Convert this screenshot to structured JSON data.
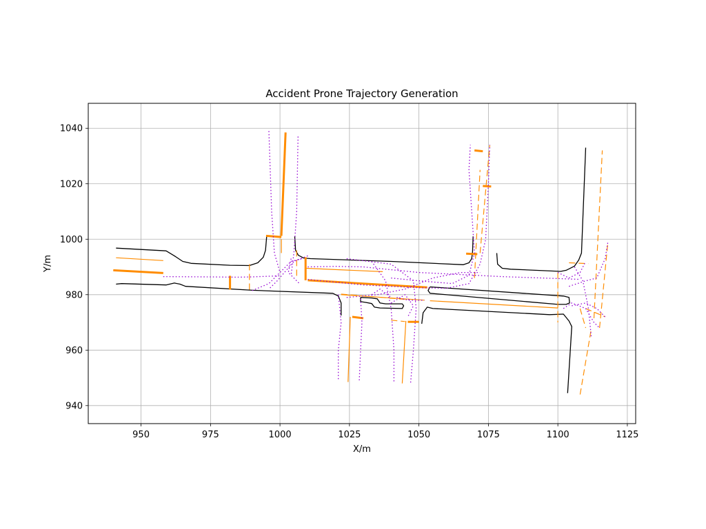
{
  "chart_data": {
    "type": "line",
    "title": "Accident Prone Trajectory Generation",
    "xlabel": "X/m",
    "ylabel": "Y/m",
    "xlim": [
      931,
      1128
    ],
    "ylim": [
      933.5,
      1049
    ],
    "xticks": [
      950,
      975,
      1000,
      1025,
      1050,
      1075,
      1100,
      1125
    ],
    "yticks": [
      940,
      960,
      980,
      1000,
      1020,
      1040
    ],
    "grid": true,
    "colors": {
      "road": "#000000",
      "lane": "#ff8c00",
      "trajectory": "#9400d3",
      "grid": "#b0b0b0"
    },
    "series": [
      {
        "style": "road",
        "points": [
          [
            941,
            996.8
          ],
          [
            959,
            995.8
          ],
          [
            962,
            994
          ],
          [
            965,
            992
          ],
          [
            968,
            991.3
          ],
          [
            982,
            990.6
          ],
          [
            989,
            990.5
          ],
          [
            992,
            991.5
          ],
          [
            994,
            993.5
          ],
          [
            994.8,
            996
          ],
          [
            995.2,
            1001
          ]
        ]
      },
      {
        "style": "road",
        "points": [
          [
            941,
            983.8
          ],
          [
            943,
            984
          ],
          [
            959,
            983.5
          ],
          [
            962,
            984.2
          ],
          [
            964,
            983.8
          ],
          [
            966,
            983
          ],
          [
            990,
            981.6
          ],
          [
            1019,
            980.5
          ],
          [
            1021,
            979.5
          ],
          [
            1022,
            977
          ],
          [
            1022,
            972.5
          ]
        ]
      },
      {
        "style": "road",
        "points": [
          [
            1005.3,
            1001
          ],
          [
            1005.6,
            996
          ],
          [
            1006.6,
            994.2
          ],
          [
            1008.5,
            993.2
          ],
          [
            1011,
            993
          ],
          [
            1040,
            992
          ],
          [
            1066,
            990.8
          ],
          [
            1068,
            991.5
          ],
          [
            1069,
            993
          ],
          [
            1069.3,
            995.5
          ],
          [
            1069.5,
            1001
          ]
        ]
      },
      {
        "style": "road",
        "points": [
          [
            1078,
            995
          ],
          [
            1078.3,
            991
          ],
          [
            1080,
            989.5
          ],
          [
            1083,
            989.2
          ],
          [
            1099,
            988.5
          ],
          [
            1101,
            988.4
          ],
          [
            1103,
            988.8
          ],
          [
            1106,
            990.3
          ],
          [
            1107.5,
            992.5
          ],
          [
            1108.5,
            995
          ],
          [
            1110,
            1033
          ]
        ]
      },
      {
        "style": "road",
        "points": [
          [
            1103.5,
            944.5
          ],
          [
            1105,
            968.5
          ],
          [
            1104,
            970.5
          ],
          [
            1102,
            973
          ],
          [
            1097,
            972.8
          ],
          [
            1055,
            975
          ],
          [
            1053,
            975.5
          ],
          [
            1051.5,
            973.5
          ],
          [
            1051,
            969.5
          ]
        ]
      },
      {
        "style": "road",
        "points": [
          [
            1054,
            982.8
          ],
          [
            1102,
            979.5
          ],
          [
            1104,
            979
          ],
          [
            1104.2,
            977
          ],
          [
            1103,
            976.5
          ],
          [
            1100,
            976.5
          ],
          [
            1054,
            980.5
          ],
          [
            1053.3,
            981.5
          ],
          [
            1054,
            982.8
          ]
        ]
      },
      {
        "style": "road",
        "points": [
          [
            1029,
            979
          ],
          [
            1029,
            977.5
          ],
          [
            1031,
            977.2
          ],
          [
            1033,
            976.8
          ],
          [
            1034,
            975.5
          ],
          [
            1036,
            975.2
          ],
          [
            1044,
            975
          ],
          [
            1044.5,
            976
          ],
          [
            1044,
            976.7
          ],
          [
            1038,
            976.7
          ],
          [
            1036,
            977
          ],
          [
            1035,
            978.5
          ],
          [
            1033,
            978.8
          ],
          [
            1029,
            979
          ]
        ]
      },
      {
        "style": "lane-thick",
        "points": [
          [
            940,
            988.8
          ],
          [
            958,
            987.8
          ]
        ]
      },
      {
        "style": "lane-thick",
        "points": [
          [
            982,
            986.8
          ],
          [
            982,
            981.8
          ]
        ]
      },
      {
        "style": "lane-thick",
        "points": [
          [
            995,
            1001.2
          ],
          [
            1000.5,
            1000.8
          ]
        ]
      },
      {
        "style": "lane-thick",
        "points": [
          [
            1000.5,
            1001.2
          ],
          [
            1002,
            1038.5
          ]
        ]
      },
      {
        "style": "lane-thick",
        "points": [
          [
            1009.2,
            993.5
          ],
          [
            1009.2,
            985.2
          ]
        ]
      },
      {
        "style": "lane-thick",
        "points": [
          [
            1010,
            985.2
          ],
          [
            1053,
            982.6
          ]
        ]
      },
      {
        "style": "lane-thick",
        "points": [
          [
            1026,
            972
          ],
          [
            1030,
            971.5
          ]
        ]
      },
      {
        "style": "lane-thick",
        "points": [
          [
            1046,
            970.2
          ],
          [
            1050,
            970.2
          ]
        ]
      },
      {
        "style": "lane-thick",
        "points": [
          [
            1067,
            994.8
          ],
          [
            1071,
            994.6
          ]
        ]
      },
      {
        "style": "lane-thick",
        "points": [
          [
            1070,
            1032
          ],
          [
            1073,
            1031.7
          ]
        ]
      },
      {
        "style": "lane-thick",
        "points": [
          [
            1073,
            1019.2
          ],
          [
            1076,
            1019
          ]
        ]
      },
      {
        "style": "lane",
        "points": [
          [
            941,
            993.3
          ],
          [
            958,
            992.3
          ]
        ]
      },
      {
        "style": "lane",
        "points": [
          [
            1009.5,
            989.5
          ],
          [
            1037,
            988.3
          ]
        ]
      },
      {
        "style": "lane",
        "points": [
          [
            1054,
            977.8
          ],
          [
            1100,
            975.2
          ]
        ]
      },
      {
        "style": "lane",
        "points": [
          [
            1022,
            980
          ],
          [
            1052,
            978
          ]
        ]
      },
      {
        "style": "lane",
        "points": [
          [
            1025.3,
            972
          ],
          [
            1024.5,
            948.5
          ]
        ]
      },
      {
        "style": "lane",
        "points": [
          [
            1045.3,
            970.5
          ],
          [
            1044,
            948
          ]
        ]
      },
      {
        "style": "lane",
        "points": [
          [
            1000.5,
            1000
          ],
          [
            1000.5,
            995
          ]
        ]
      },
      {
        "style": "lane-dash",
        "points": [
          [
            1104,
            991.5
          ],
          [
            1111,
            991.2
          ]
        ]
      },
      {
        "style": "lane-dash",
        "points": [
          [
            1108,
            944
          ],
          [
            1112,
            967.5
          ]
        ]
      },
      {
        "style": "lane-dash",
        "points": [
          [
            1113,
            971.5
          ],
          [
            1116,
            1032
          ]
        ]
      },
      {
        "style": "lane-dash",
        "points": [
          [
            1115,
            968
          ],
          [
            1118,
            999
          ]
        ]
      },
      {
        "style": "lane-dash",
        "points": [
          [
            1100,
            988
          ],
          [
            1100,
            970
          ]
        ]
      },
      {
        "style": "lane-dash",
        "points": [
          [
            1072,
            995
          ],
          [
            1075.5,
            1034
          ]
        ]
      },
      {
        "style": "lane-dash",
        "points": [
          [
            1070,
            986
          ],
          [
            1072,
            1025
          ]
        ]
      },
      {
        "style": "lane-dash",
        "points": [
          [
            989,
            991
          ],
          [
            989,
            981
          ]
        ]
      },
      {
        "style": "lane-dash",
        "points": [
          [
            1006,
            996
          ],
          [
            1006,
            986
          ]
        ]
      },
      {
        "style": "lane-dash",
        "points": [
          [
            1040,
            970.8
          ],
          [
            1045,
            970.3
          ]
        ]
      },
      {
        "style": "lane-dash",
        "points": [
          [
            1022,
            980.2
          ],
          [
            1045,
            978.3
          ]
        ]
      },
      {
        "style": "lane-dash",
        "points": [
          [
            1108,
            975
          ],
          [
            1110,
            968
          ]
        ]
      },
      {
        "style": "lane-dash",
        "points": [
          [
            1110,
            975
          ],
          [
            1117,
            972
          ]
        ]
      },
      {
        "style": "traj",
        "points": [
          [
            996,
            1039
          ],
          [
            997,
            1010
          ],
          [
            998,
            995
          ],
          [
            1000,
            988
          ]
        ]
      },
      {
        "style": "traj",
        "points": [
          [
            1006.5,
            1037
          ],
          [
            1006,
            1010
          ],
          [
            1005,
            995
          ],
          [
            1004,
            987
          ]
        ]
      },
      {
        "style": "traj",
        "points": [
          [
            958,
            986.5
          ],
          [
            975,
            986.4
          ],
          [
            985,
            986.3
          ],
          [
            990,
            986.4
          ],
          [
            1000,
            986.8
          ]
        ]
      },
      {
        "style": "traj",
        "points": [
          [
            990,
            981.5
          ],
          [
            996,
            984
          ],
          [
            1000,
            988
          ],
          [
            1004,
            992
          ],
          [
            1008,
            993
          ]
        ]
      },
      {
        "style": "traj",
        "points": [
          [
            1010,
            994
          ],
          [
            1005,
            992
          ],
          [
            999,
            985
          ],
          [
            996,
            982
          ]
        ]
      },
      {
        "style": "traj",
        "points": [
          [
            1004,
            993
          ],
          [
            1003,
            988
          ],
          [
            1007,
            984
          ]
        ]
      },
      {
        "style": "traj",
        "points": [
          [
            1010,
            990
          ],
          [
            1020,
            990.2
          ],
          [
            1030,
            990
          ],
          [
            1040,
            989
          ],
          [
            1050,
            988
          ],
          [
            1060,
            987.5
          ],
          [
            1070,
            987
          ],
          [
            1080,
            986.5
          ],
          [
            1100,
            985.8
          ],
          [
            1108,
            985.5
          ]
        ]
      },
      {
        "style": "traj",
        "points": [
          [
            1010,
            985.5
          ],
          [
            1020,
            984.5
          ],
          [
            1030,
            983.5
          ],
          [
            1040,
            983
          ],
          [
            1050,
            982.5
          ],
          [
            1060,
            982.3
          ],
          [
            1068,
            984
          ],
          [
            1072,
            991
          ],
          [
            1074,
            1000
          ],
          [
            1075,
            1020
          ],
          [
            1075.5,
            1034
          ]
        ]
      },
      {
        "style": "traj",
        "points": [
          [
            1040,
            986
          ],
          [
            1050,
            985
          ],
          [
            1062,
            984
          ],
          [
            1068,
            987
          ],
          [
            1070,
            995
          ],
          [
            1069,
            1010
          ],
          [
            1068,
            1025
          ],
          [
            1068.5,
            1034
          ]
        ]
      },
      {
        "style": "traj",
        "points": [
          [
            1021,
            980
          ],
          [
            1022,
            970
          ],
          [
            1021,
            960
          ],
          [
            1021,
            949
          ]
        ]
      },
      {
        "style": "traj",
        "points": [
          [
            1029,
            978.5
          ],
          [
            1029.5,
            970
          ],
          [
            1029,
            960
          ],
          [
            1028.5,
            948.5
          ]
        ]
      },
      {
        "style": "traj",
        "points": [
          [
            1033,
            992
          ],
          [
            1038,
            985
          ],
          [
            1040,
            975
          ],
          [
            1041,
            960
          ],
          [
            1041,
            948
          ]
        ]
      },
      {
        "style": "traj",
        "points": [
          [
            1024,
            993
          ],
          [
            1040,
            991
          ],
          [
            1048,
            985
          ],
          [
            1049,
            975
          ],
          [
            1048,
            960
          ],
          [
            1047,
            948
          ]
        ]
      },
      {
        "style": "traj",
        "points": [
          [
            1024,
            979
          ],
          [
            1035,
            980
          ],
          [
            1045,
            982
          ],
          [
            1055,
            986
          ],
          [
            1065,
            988
          ],
          [
            1072,
            988
          ]
        ]
      },
      {
        "style": "traj",
        "points": [
          [
            1040,
            977
          ],
          [
            1045,
            980
          ],
          [
            1048,
            976
          ],
          [
            1046,
            972
          ]
        ]
      },
      {
        "style": "traj",
        "points": [
          [
            1042,
            979
          ],
          [
            1046,
            978
          ],
          [
            1052,
            978
          ]
        ]
      },
      {
        "style": "traj",
        "points": [
          [
            1033,
            980
          ],
          [
            1036,
            982
          ],
          [
            1040,
            979
          ]
        ]
      },
      {
        "style": "traj",
        "points": [
          [
            1100,
            988
          ],
          [
            1104,
            986
          ],
          [
            1108,
            988
          ],
          [
            1110,
            992
          ]
        ]
      },
      {
        "style": "traj",
        "points": [
          [
            1102,
            975
          ],
          [
            1105,
            977
          ],
          [
            1110,
            975
          ],
          [
            1113,
            970
          ],
          [
            1115,
            968
          ]
        ]
      },
      {
        "style": "traj",
        "points": [
          [
            1106,
            990
          ],
          [
            1109,
            985
          ],
          [
            1111,
            975
          ],
          [
            1112,
            965
          ]
        ]
      },
      {
        "style": "traj",
        "points": [
          [
            1104,
            983
          ],
          [
            1110,
            985
          ],
          [
            1114,
            986
          ],
          [
            1117,
            993
          ],
          [
            1118,
            999
          ]
        ]
      },
      {
        "style": "traj",
        "points": [
          [
            1105,
            976
          ],
          [
            1110,
            977
          ],
          [
            1114,
            975
          ],
          [
            1117,
            972
          ]
        ]
      }
    ]
  }
}
